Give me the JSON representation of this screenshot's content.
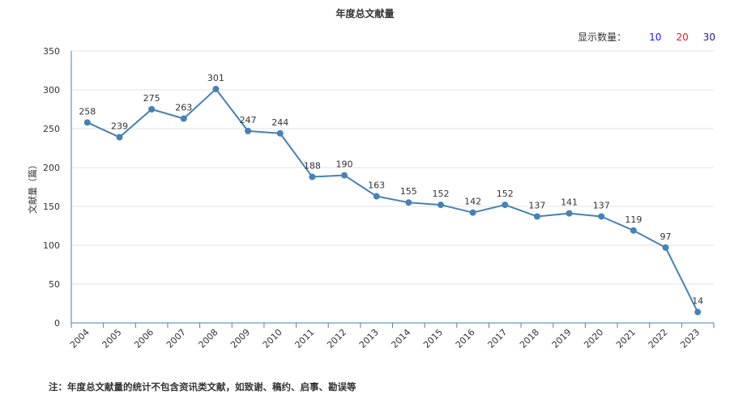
{
  "header": {
    "title": "年度总文献量"
  },
  "display_count": {
    "label": "显示数量：",
    "options": [
      {
        "value": "10",
        "color": "#1a1aff"
      },
      {
        "value": "20",
        "color": "#e02020"
      },
      {
        "value": "30",
        "color": "#1a1a99"
      }
    ]
  },
  "footer": {
    "note": "注：年度总文献量的统计不包含资讯类文献，如致谢、稿约、启事、勘误等"
  },
  "chart_data": {
    "type": "line",
    "title": "年度总文献量",
    "xlabel": "",
    "ylabel": "文献量（篇）",
    "ylim": [
      0,
      350
    ],
    "yticks": [
      0,
      50,
      100,
      150,
      200,
      250,
      300,
      350
    ],
    "categories": [
      "2004",
      "2005",
      "2006",
      "2007",
      "2008",
      "2009",
      "2010",
      "2011",
      "2012",
      "2013",
      "2014",
      "2015",
      "2016",
      "2017",
      "2018",
      "2019",
      "2020",
      "2021",
      "2022",
      "2023"
    ],
    "series": [
      {
        "values": [
          258,
          239,
          275,
          263,
          301,
          247,
          244,
          188,
          190,
          163,
          155,
          152,
          142,
          152,
          137,
          141,
          137,
          119,
          97,
          14
        ],
        "color": "#4682b4"
      }
    ],
    "grid": true,
    "data_labels": true
  }
}
